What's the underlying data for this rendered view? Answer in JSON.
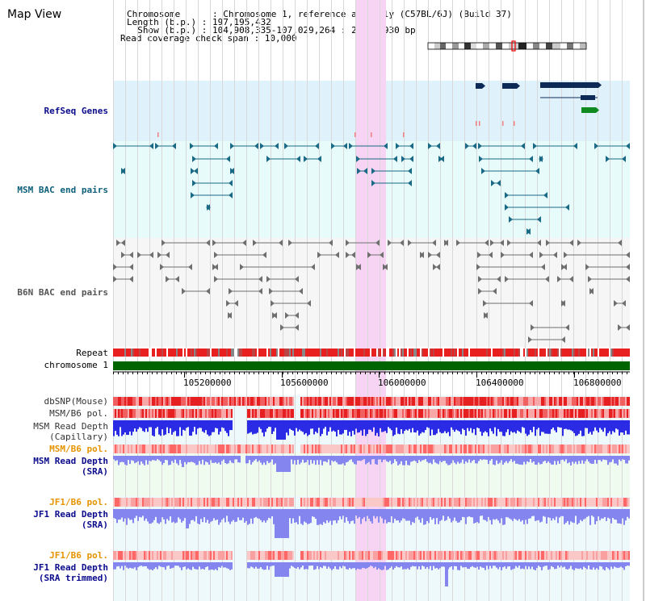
{
  "panel_title": "Map View",
  "header": {
    "chromosome_line": "Chromosome      : Chromosome 1, reference assembly (C57BL/6J) (Build 37)",
    "length_line": "Length (b.p.) : 197,195,432",
    "show_line": "  Show (b.p.) : 104,908,335-107,029,264 : 2,120,930 bp",
    "coverage_line": "Read coverage check span : 10,000"
  },
  "tracks": {
    "refseq": "RefSeq Genes",
    "msm_bac": "MSM BAC end pairs",
    "b6n_bac": "B6N BAC end pairs",
    "repeat": "Repeat",
    "chromosome": "chromosome 1",
    "dbsnp": "dbSNP(Mouse)",
    "msm_b6_pol": "MSM/B6 pol.",
    "msm_depth_cap_1": "MSM Read Depth",
    "msm_depth_cap_2": "(Capillary)",
    "msm_b6_pol_2": "MSM/B6 pol.",
    "msm_depth_sra_1": "MSM Read Depth",
    "msm_depth_sra_2": "(SRA)",
    "jf1_b6_pol": "JF1/B6 pol.",
    "jf1_depth_sra_1": "JF1 Read Depth",
    "jf1_depth_sra_2": "(SRA)",
    "jf1_b6_pol_2": "JF1/B6 pol.",
    "jf1_depth_trim_1": "JF1 Read Depth",
    "jf1_depth_trim_2": "(SRA trimmed)"
  },
  "axis_ticks": [
    "105200000",
    "105600000",
    "106000000",
    "106400000",
    "106800000"
  ],
  "colors": {
    "refseq_bg": "#dff2fb",
    "bac_bg": "#e8fbfb",
    "highlight": "#f7d4f3",
    "chromosome_bar": "#006400",
    "gene_navy": "#0d2a57",
    "gene_green": "#0f8a1e",
    "msm_bac": "#1a6a86",
    "b6n_bac": "#6f6f6f",
    "depth_blue": "#2a2ae0",
    "depth_sra": "#8585f0",
    "snp_red": "#ee2222"
  },
  "icons": [
    "ideogram-icon"
  ]
}
